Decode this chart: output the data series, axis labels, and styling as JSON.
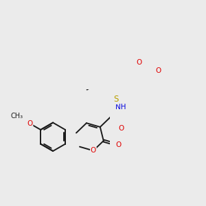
{
  "bg_color": "#ebebeb",
  "bond_color": "#1a1a1a",
  "bond_width": 1.4,
  "atom_colors": {
    "O": "#e00000",
    "N": "#0000dd",
    "S": "#b8a000",
    "C": "#1a1a1a"
  },
  "font_size": 7.5
}
